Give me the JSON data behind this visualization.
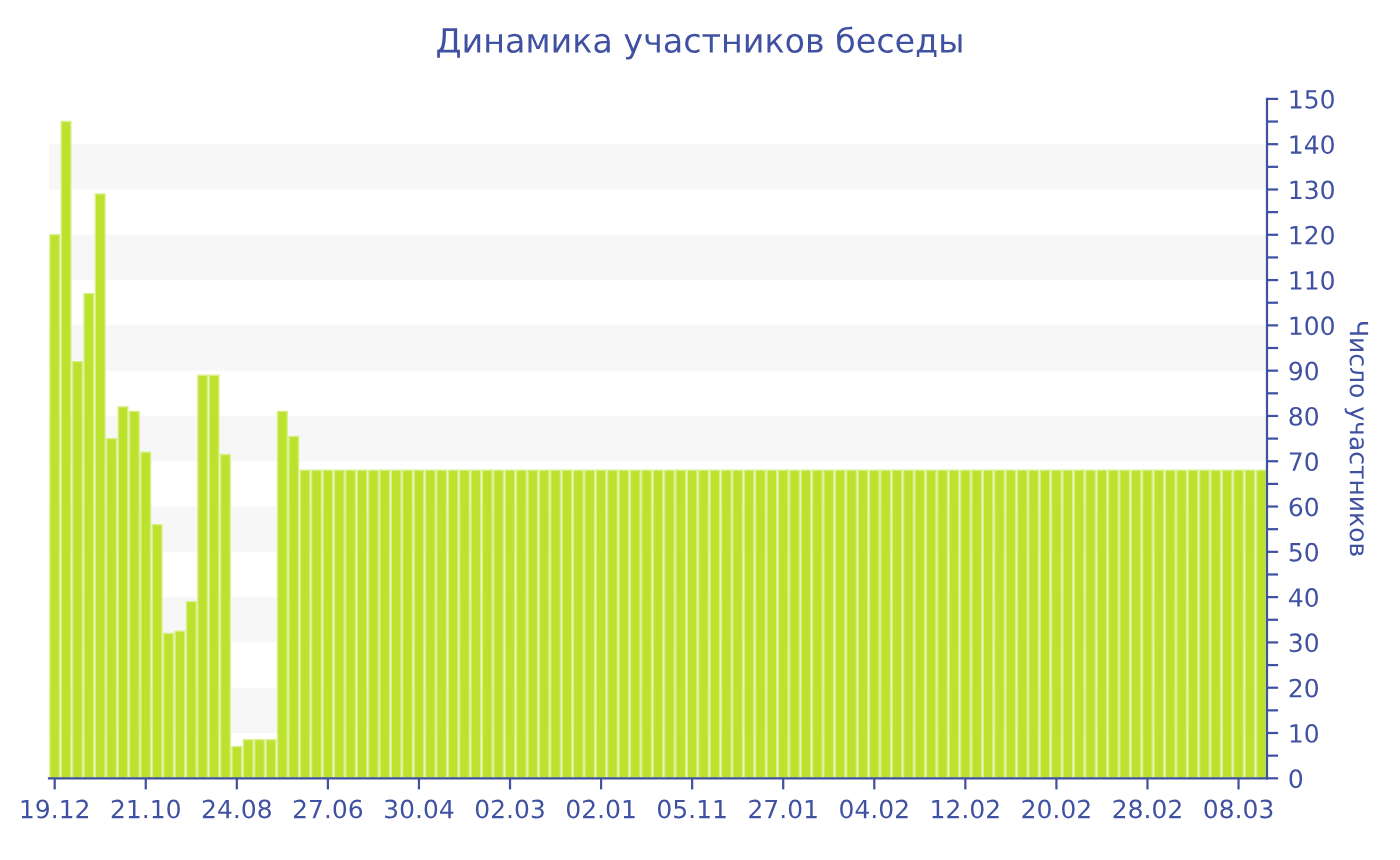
{
  "chart_data": {
    "type": "bar",
    "title": "Динамика участников беседы",
    "ylabel": "Число участников",
    "categories": [
      "19.12",
      null,
      null,
      null,
      null,
      null,
      null,
      null,
      "21.10",
      null,
      null,
      null,
      null,
      null,
      null,
      null,
      "24.08",
      null,
      null,
      null,
      null,
      null,
      null,
      null,
      "27.06",
      null,
      null,
      null,
      null,
      null,
      null,
      null,
      "30.04",
      null,
      null,
      null,
      null,
      null,
      null,
      null,
      "02.03",
      null,
      null,
      null,
      null,
      null,
      null,
      null,
      "02.01",
      null,
      null,
      null,
      null,
      null,
      null,
      null,
      "05.11",
      null,
      null,
      null,
      null,
      null,
      null,
      null,
      "27.01",
      null,
      null,
      null,
      null,
      null,
      null,
      null,
      "04.02",
      null,
      null,
      null,
      null,
      null,
      null,
      null,
      "12.02",
      null,
      null,
      null,
      null,
      null,
      null,
      null,
      "20.02",
      null,
      null,
      null,
      null,
      null,
      null,
      null,
      "28.02",
      null,
      null,
      null,
      null,
      null,
      null,
      null,
      "08.03",
      null,
      null
    ],
    "values": [
      120,
      145,
      92,
      107,
      129,
      75,
      82,
      81,
      72,
      56,
      32,
      32.5,
      39,
      89,
      89,
      71.5,
      7,
      8.5,
      8.5,
      8.5,
      81,
      75.5,
      68,
      68,
      68,
      68,
      68,
      68,
      68,
      68,
      68,
      68,
      68,
      68,
      68,
      68,
      68,
      68,
      68,
      68,
      68,
      68,
      68,
      68,
      68,
      68,
      68,
      68,
      68,
      68,
      68,
      68,
      68,
      68,
      68,
      68,
      68,
      68,
      68,
      68,
      68,
      68,
      68,
      68,
      68,
      68,
      68,
      68,
      68,
      68,
      68,
      68,
      68,
      68,
      68,
      68,
      68,
      68,
      68,
      68,
      68,
      68,
      68,
      68,
      68,
      68,
      68,
      68,
      68,
      68,
      68,
      68,
      68,
      68,
      68,
      68,
      68,
      68,
      68,
      68,
      68,
      68,
      68,
      68,
      68,
      68,
      68
    ],
    "color": "#bde22e",
    "ylim": [
      0,
      150
    ],
    "yticks": [
      0,
      {
        "value": 5,
        "label": null
      },
      10,
      {
        "value": 15,
        "label": null
      },
      20,
      {
        "value": 25,
        "label": null
      },
      30,
      {
        "value": 35,
        "label": null
      },
      40,
      {
        "value": 45,
        "label": null
      },
      50,
      {
        "value": 55,
        "label": null
      },
      60,
      {
        "value": 65,
        "label": null
      },
      70,
      {
        "value": 75,
        "label": null
      },
      80,
      {
        "value": 85,
        "label": null
      },
      90,
      {
        "value": 95,
        "label": null
      },
      100,
      {
        "value": 105,
        "label": null
      },
      110,
      {
        "value": 115,
        "label": null
      },
      120,
      {
        "value": 125,
        "label": null
      },
      130,
      {
        "value": 135,
        "label": null
      },
      140,
      {
        "value": 145,
        "label": null
      },
      150
    ],
    "bands": [
      {
        "axis": "y",
        "from": 10,
        "to": 20,
        "color": "#f7f7f7"
      },
      {
        "axis": "y",
        "from": 30,
        "to": 40,
        "color": "#f7f7f7"
      },
      {
        "axis": "y",
        "from": 50,
        "to": 60,
        "color": "#f7f7f7"
      },
      {
        "axis": "y",
        "from": 70,
        "to": 80,
        "color": "#f7f7f7"
      },
      {
        "axis": "y",
        "from": 90,
        "to": 100,
        "color": "#f7f7f7"
      },
      {
        "axis": "y",
        "from": 110,
        "to": 120,
        "color": "#f7f7f7"
      },
      {
        "axis": "y",
        "from": 130,
        "to": 140,
        "color": "#f7f7f7"
      }
    ],
    "grid": false
  }
}
